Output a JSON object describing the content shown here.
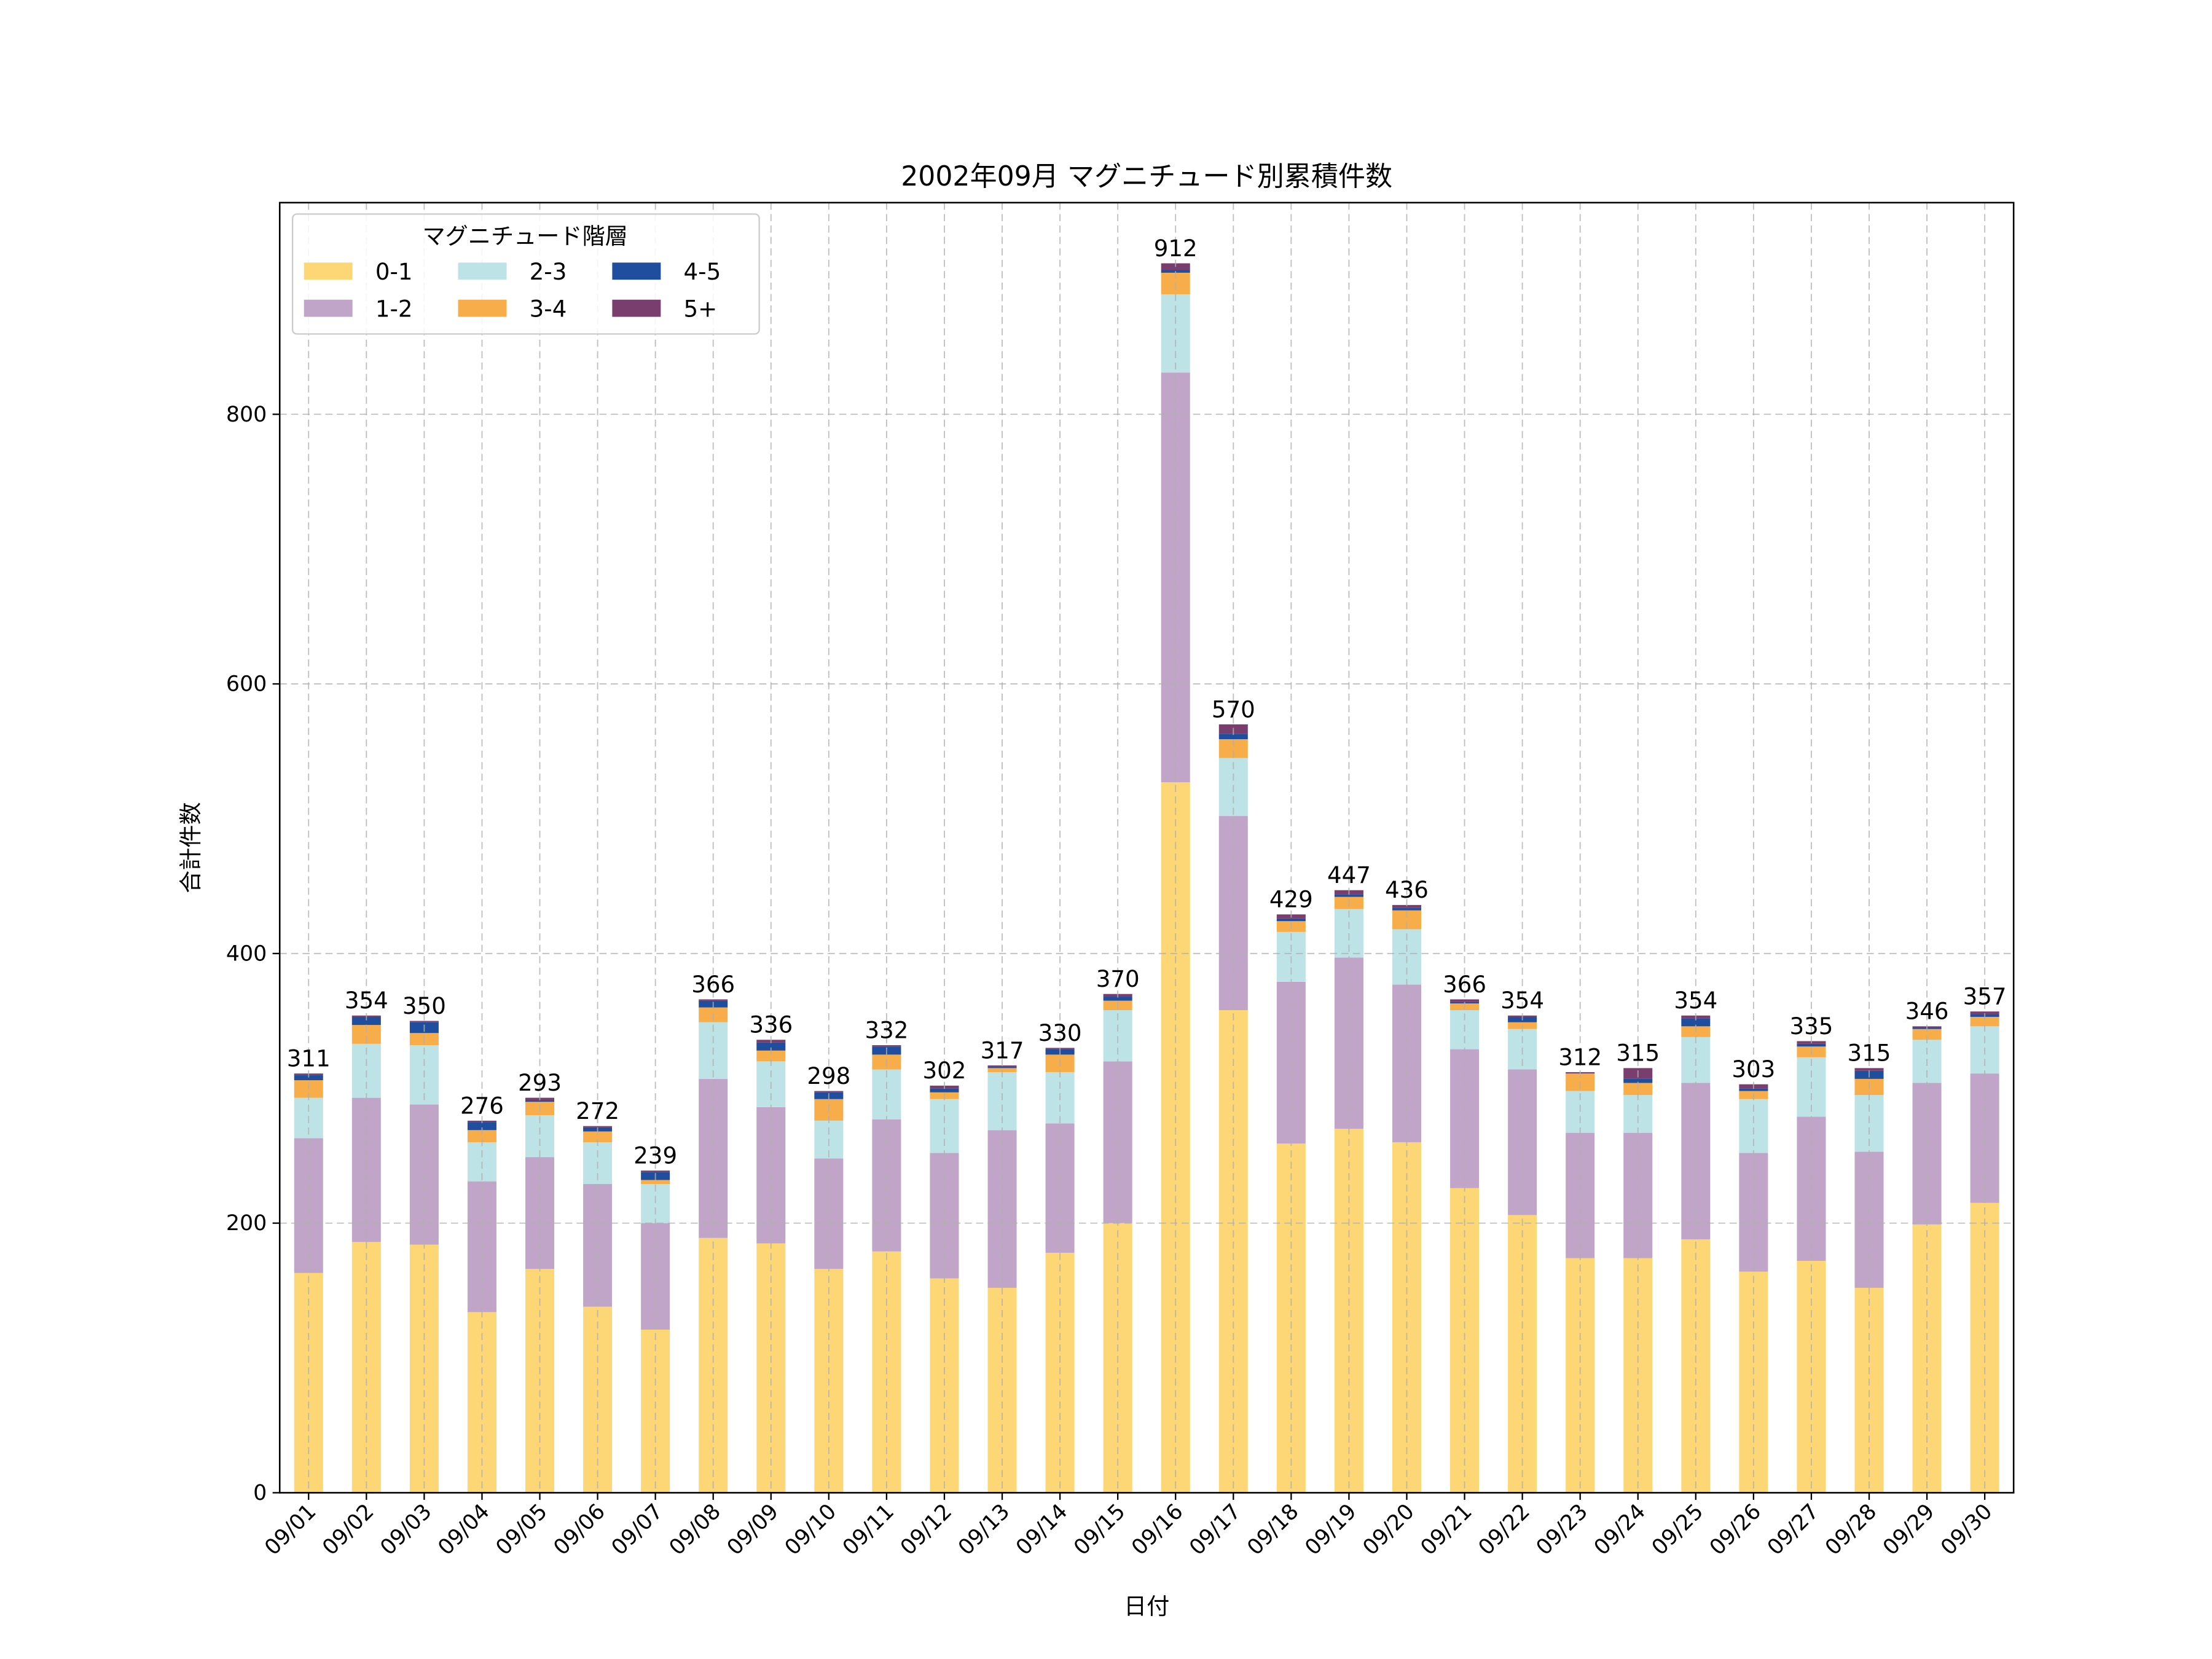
{
  "chart_data": {
    "type": "bar",
    "stacked": true,
    "title": "2002年09月 マグニチュード別累積件数",
    "xlabel": "日付",
    "ylabel": "合計件数",
    "ylim": [
      0,
      957
    ],
    "yticks": [
      0,
      200,
      400,
      600,
      800
    ],
    "grid": true,
    "legend": {
      "title": "マグニチュード階層",
      "placement": "top-left",
      "columns": 3
    },
    "categories": [
      "09/01",
      "09/02",
      "09/03",
      "09/04",
      "09/05",
      "09/06",
      "09/07",
      "09/08",
      "09/09",
      "09/10",
      "09/11",
      "09/12",
      "09/13",
      "09/14",
      "09/15",
      "09/16",
      "09/17",
      "09/18",
      "09/19",
      "09/20",
      "09/21",
      "09/22",
      "09/23",
      "09/24",
      "09/25",
      "09/26",
      "09/27",
      "09/28",
      "09/29",
      "09/30"
    ],
    "series": [
      {
        "name": "0-1",
        "color": "#FDD775",
        "values": [
          163,
          186,
          184,
          134,
          166,
          138,
          121,
          189,
          185,
          166,
          179,
          159,
          152,
          178,
          200,
          527,
          358,
          259,
          270,
          260,
          226,
          206,
          174,
          174,
          188,
          164,
          172,
          152,
          199,
          215
        ]
      },
      {
        "name": "1-2",
        "color": "#C0A5C8",
        "values": [
          100,
          107,
          104,
          97,
          83,
          91,
          79,
          118,
          101,
          82,
          98,
          93,
          117,
          96,
          120,
          304,
          144,
          120,
          127,
          117,
          103,
          108,
          93,
          93,
          116,
          88,
          107,
          101,
          105,
          96
        ]
      },
      {
        "name": "2-3",
        "color": "#BEE3E6",
        "values": [
          30,
          40,
          44,
          29,
          31,
          31,
          29,
          42,
          34,
          28,
          37,
          40,
          43,
          38,
          38,
          58,
          43,
          37,
          36,
          41,
          29,
          30,
          31,
          28,
          34,
          40,
          44,
          42,
          32,
          35
        ]
      },
      {
        "name": "3-4",
        "color": "#F6AD4A",
        "values": [
          13,
          14,
          9,
          9,
          10,
          8,
          3,
          11,
          8,
          16,
          11,
          5,
          3,
          13,
          7,
          16,
          14,
          8,
          9,
          14,
          5,
          5,
          13,
          9,
          8,
          6,
          8,
          12,
          8,
          7
        ]
      },
      {
        "name": "4-5",
        "color": "#1F4E9F",
        "values": [
          4,
          6,
          8,
          6,
          1,
          3,
          6,
          5,
          6,
          5,
          6,
          3,
          1,
          4,
          3,
          2,
          4,
          2,
          2,
          2,
          1,
          4,
          0,
          3,
          6,
          2,
          2,
          6,
          1,
          2
        ]
      },
      {
        "name": "5+",
        "color": "#7A3E6E",
        "values": [
          1,
          1,
          1,
          1,
          2,
          1,
          1,
          1,
          2,
          1,
          1,
          2,
          1,
          1,
          2,
          5,
          7,
          3,
          3,
          2,
          2,
          1,
          1,
          8,
          2,
          3,
          2,
          2,
          1,
          2
        ]
      }
    ],
    "totals": [
      311,
      354,
      350,
      276,
      293,
      272,
      239,
      366,
      336,
      298,
      332,
      302,
      317,
      330,
      370,
      912,
      570,
      429,
      447,
      436,
      366,
      354,
      312,
      315,
      354,
      303,
      335,
      315,
      346,
      357
    ]
  }
}
